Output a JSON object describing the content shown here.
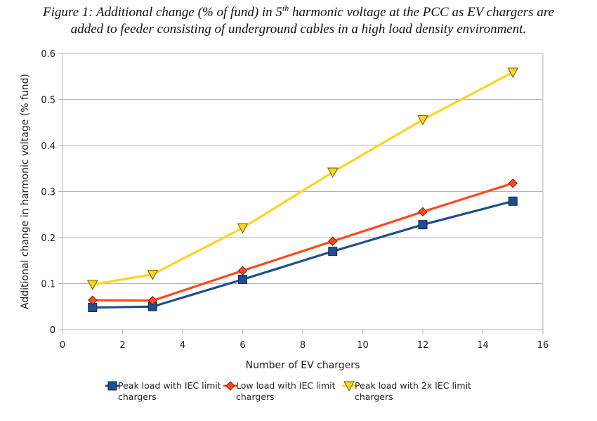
{
  "figure": {
    "caption_line1_a": "Figure 1: Additional change (% of fund) in 5",
    "caption_line1_sup": "th",
    "caption_line1_b": " harmonic voltage at the PCC as EV chargers are",
    "caption_line2": "added to feeder consisting of underground cables in a high load density environment."
  },
  "chart_data": {
    "type": "line",
    "title": "",
    "xlabel": "Number of EV chargers",
    "ylabel": "Additional change in harmonic voltage (% fund)",
    "xlim": [
      0,
      16
    ],
    "ylim": [
      0,
      0.6
    ],
    "xticks": [
      "0",
      "2",
      "4",
      "6",
      "8",
      "10",
      "12",
      "14",
      "16"
    ],
    "yticks": [
      "0",
      "0.1",
      "0.2",
      "0.3",
      "0.4",
      "0.5",
      "0.6"
    ],
    "grid": "horizontal",
    "legend_position": "bottom",
    "series": [
      {
        "name_line1": "Peak load with IEC limit",
        "name_line2": "chargers",
        "color": "#1f4e8c",
        "marker_color": "#1f4e8c",
        "marker": "square",
        "x": [
          1,
          3,
          6,
          9,
          12,
          15
        ],
        "y": [
          0.048,
          0.05,
          0.109,
          0.17,
          0.228,
          0.279
        ]
      },
      {
        "name_line1": "Low load with IEC limit",
        "name_line2": "chargers",
        "color": "#ff4a1c",
        "marker_color": "#ff4a1c",
        "marker": "diamond",
        "x": [
          1,
          3,
          6,
          9,
          12,
          15
        ],
        "y": [
          0.064,
          0.063,
          0.128,
          0.192,
          0.256,
          0.318
        ]
      },
      {
        "name_line1": "Peak load with 2x IEC limit",
        "name_line2": "chargers",
        "color": "#ffd320",
        "marker_color": "#ffd320",
        "marker": "triangle-down",
        "x": [
          1,
          3,
          6,
          9,
          12,
          15
        ],
        "y": [
          0.098,
          0.12,
          0.221,
          0.342,
          0.456,
          0.559
        ]
      }
    ]
  }
}
